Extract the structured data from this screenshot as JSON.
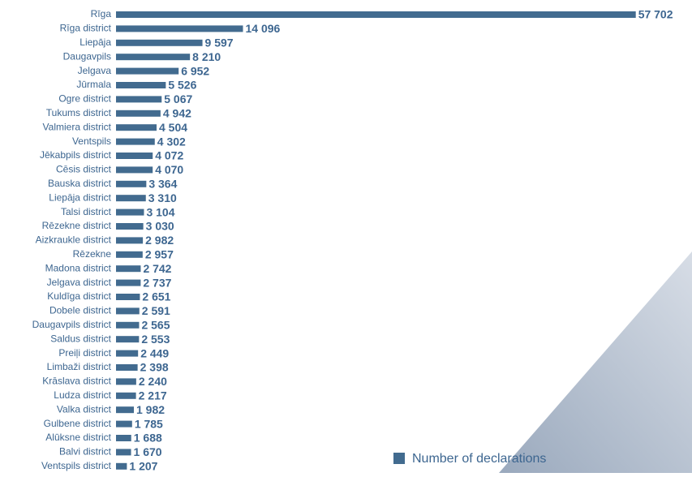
{
  "chart_data": {
    "type": "bar",
    "orientation": "horizontal",
    "categories": [
      "Rīga",
      "Rīga district",
      "Liepāja",
      "Daugavpils",
      "Jelgava",
      "Jūrmala",
      "Ogre district",
      "Tukums district",
      "Valmiera district",
      "Ventspils",
      "Jēkabpils district",
      "Cēsis district",
      "Bauska district",
      "Liepāja district",
      "Talsi district",
      "Rēzekne district",
      "Aizkraukle district",
      "Rēzekne",
      "Madona district",
      "Jelgava district",
      "Kuldīga district",
      "Dobele district",
      "Daugavpils district",
      "Saldus district",
      "Preiļi district",
      "Limbaži district",
      "Krāslava district",
      "Ludza district",
      "Valka district",
      "Gulbene district",
      "Alūksne district",
      "Balvi district",
      "Ventspils district"
    ],
    "series": [
      {
        "name": "Number of declarations",
        "color": "#426b8f",
        "values": [
          57702,
          14096,
          9597,
          8210,
          6952,
          5526,
          5067,
          4942,
          4504,
          4302,
          4072,
          4070,
          3364,
          3310,
          3104,
          3030,
          2982,
          2957,
          2742,
          2737,
          2651,
          2591,
          2565,
          2553,
          2449,
          2398,
          2240,
          2217,
          1982,
          1785,
          1688,
          1670,
          1207
        ],
        "value_labels": [
          "57 702",
          "14 096",
          "9 597",
          "8 210",
          "6 952",
          "5 526",
          "5 067",
          "4 942",
          "4 504",
          "4 302",
          "4 072",
          "4 070",
          "3 364",
          "3 310",
          "3 104",
          "3 030",
          "2 982",
          "2 957",
          "2 742",
          "2 737",
          "2 651",
          "2 591",
          "2 565",
          "2 553",
          "2 449",
          "2 398",
          "2 240",
          "2 217",
          "1 982",
          "1 785",
          "1 688",
          "1 670",
          "1 207"
        ]
      }
    ],
    "xlim": [
      0,
      58000
    ]
  }
}
